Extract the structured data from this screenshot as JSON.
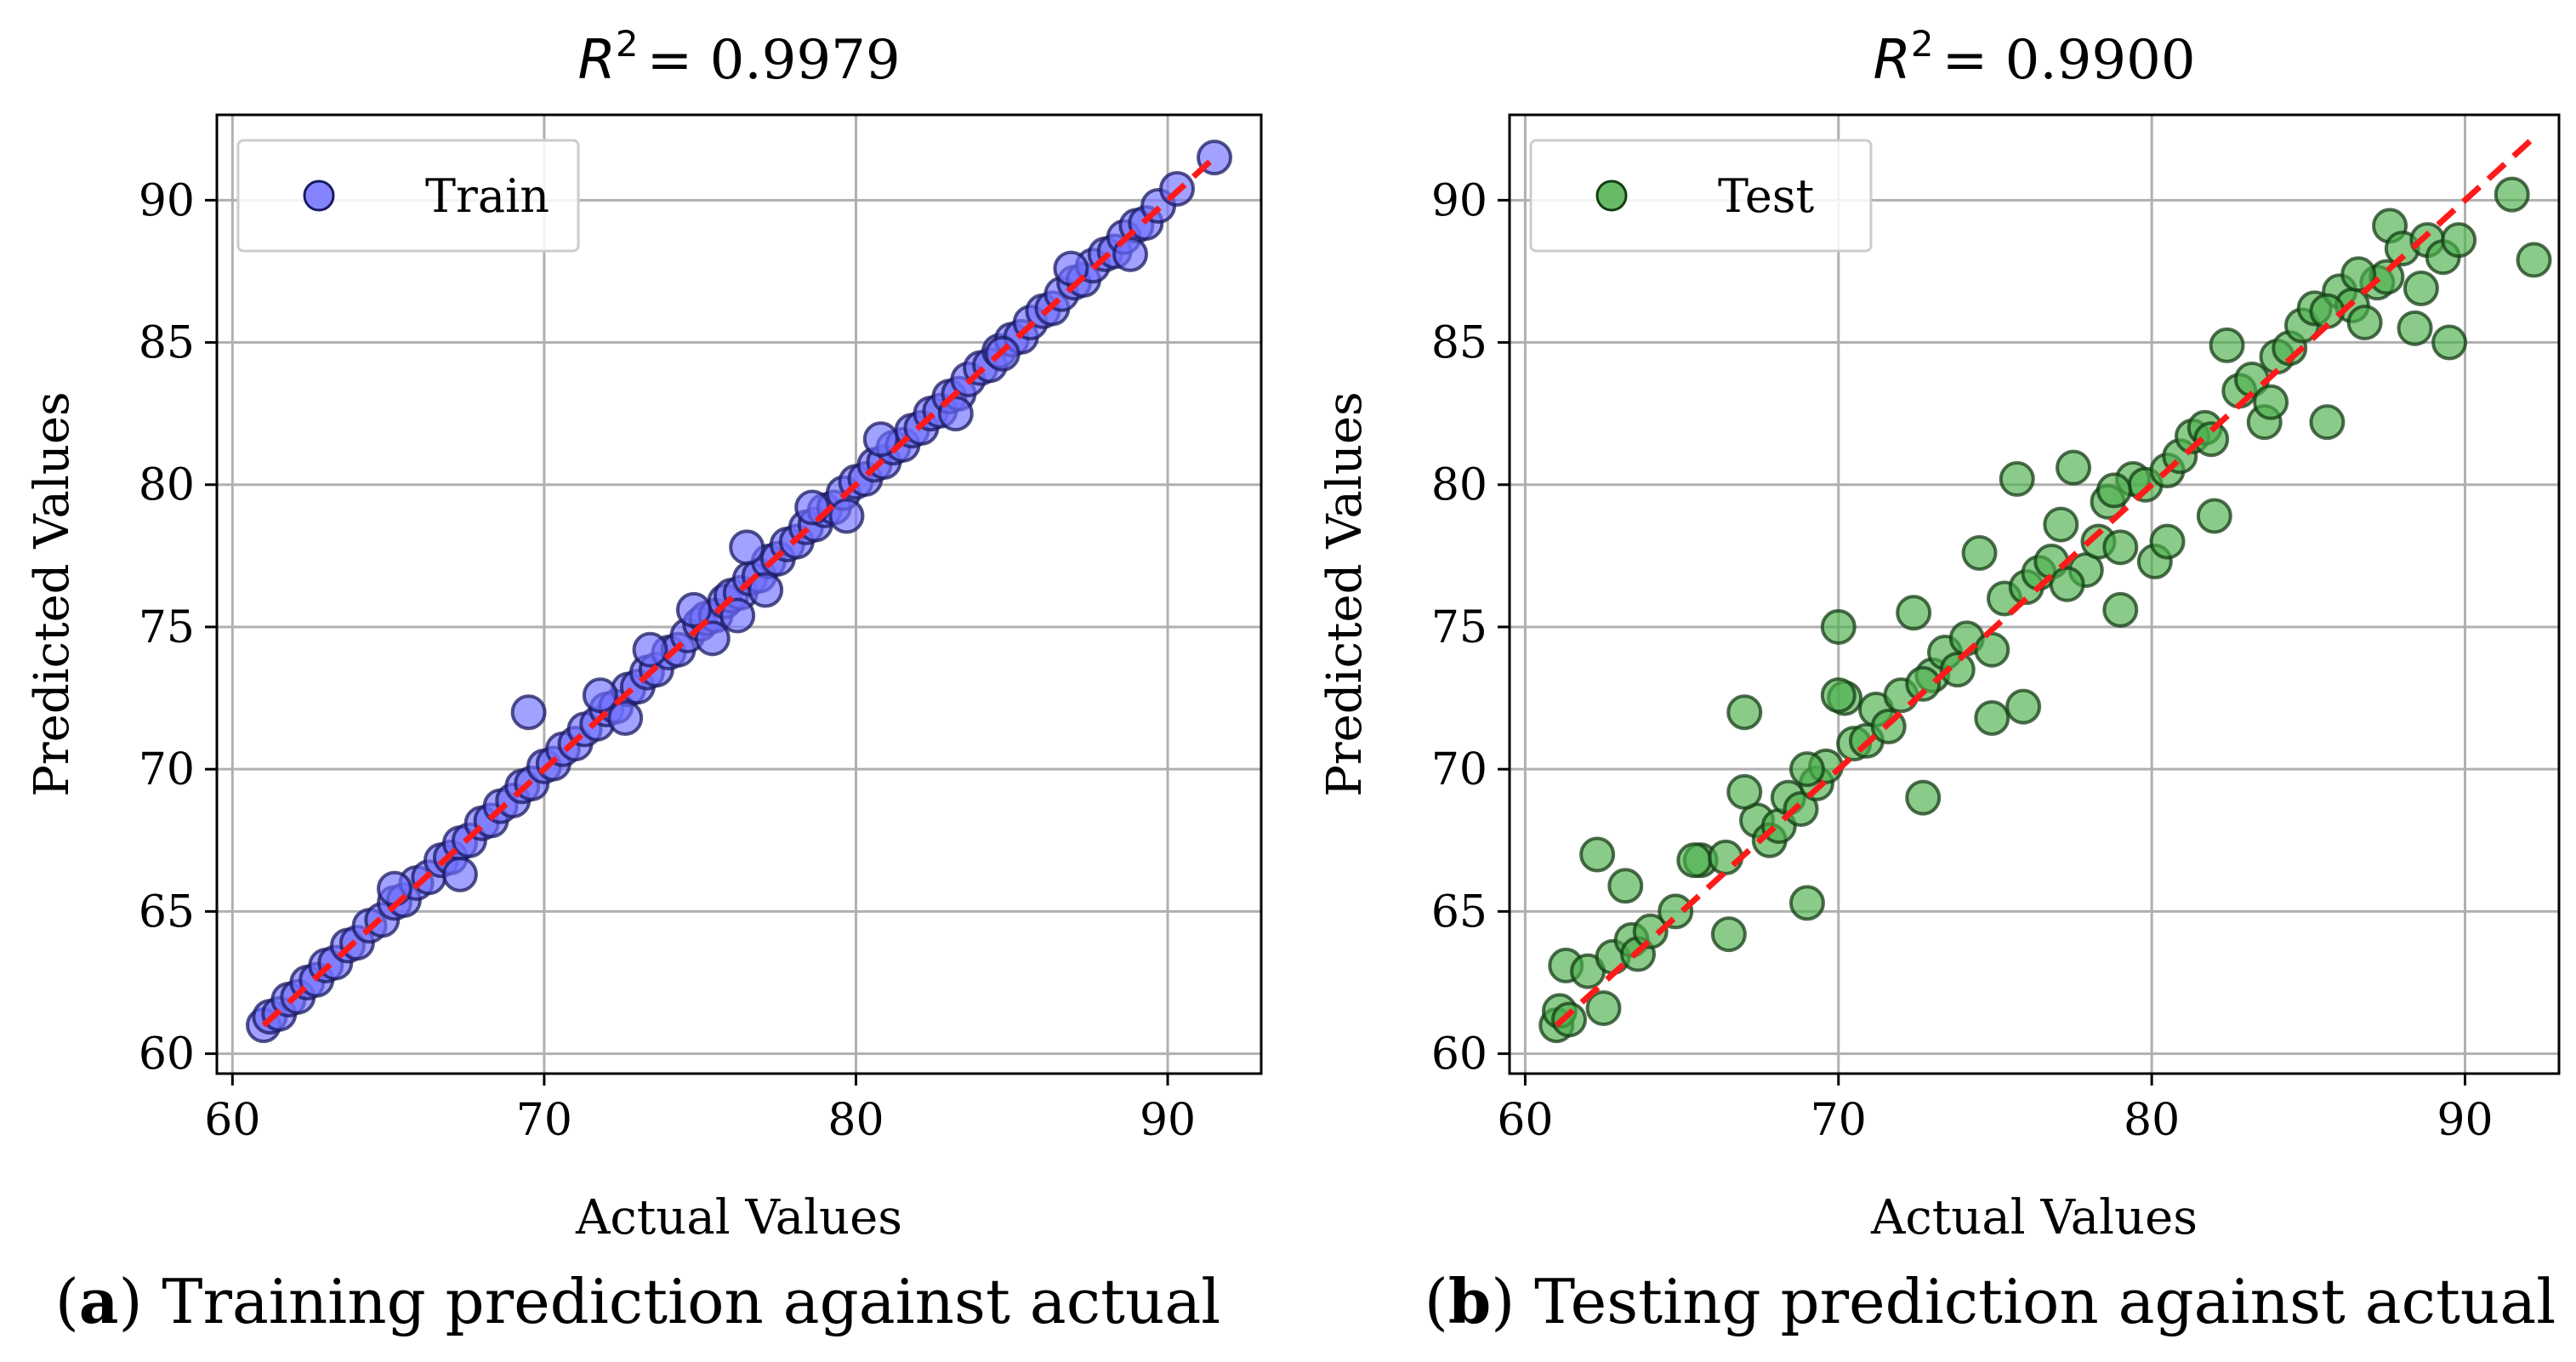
{
  "colors": {
    "train_fill": "#6e6eff",
    "train_edge": "#1a1a60",
    "test_fill": "#4caf4c",
    "test_edge": "#143c14",
    "identity_line": "#ff1a1a",
    "grid": "#b0b0b0",
    "axes": "#000000"
  },
  "chart_data": [
    {
      "type": "scatter",
      "title_prefix": "R",
      "title_sup": "2",
      "title_value": "= 0.9979",
      "xlabel": "Actual Values",
      "ylabel": "Predicted Values",
      "xlim": [
        59.5,
        93
      ],
      "ylim": [
        59.3,
        93
      ],
      "xticks": [
        60,
        70,
        80,
        90
      ],
      "yticks": [
        60,
        65,
        70,
        75,
        80,
        85,
        90
      ],
      "grid": true,
      "legend": "upper-left",
      "series": [
        {
          "name": "Train",
          "x": [
            61.0,
            61.2,
            61.5,
            61.8,
            62.1,
            62.4,
            62.7,
            63.0,
            63.3,
            63.7,
            64.0,
            64.4,
            64.8,
            65.2,
            65.5,
            65.9,
            66.3,
            66.7,
            67.0,
            67.3,
            67.6,
            68.0,
            68.3,
            68.6,
            69.0,
            69.3,
            69.6,
            70.0,
            70.3,
            70.6,
            71.0,
            71.3,
            71.7,
            72.0,
            72.3,
            72.7,
            73.0,
            73.3,
            73.6,
            74.0,
            74.3,
            74.6,
            75.0,
            75.2,
            75.5,
            75.8,
            76.0,
            76.3,
            76.6,
            76.9,
            77.2,
            77.5,
            77.8,
            78.1,
            78.4,
            78.7,
            79.0,
            79.3,
            79.6,
            80.0,
            80.3,
            80.6,
            80.9,
            81.2,
            81.5,
            81.8,
            82.1,
            82.4,
            82.7,
            83.0,
            83.3,
            83.6,
            84.0,
            84.3,
            84.6,
            85.0,
            85.3,
            85.6,
            86.0,
            86.3,
            86.6,
            87.0,
            87.3,
            87.6,
            88.0,
            88.3,
            88.6,
            89.0,
            89.3,
            89.7,
            90.3,
            91.5,
            69.5,
            67.3,
            65.2,
            71.8,
            76.5,
            77.1,
            78.6,
            73.4,
            75.4,
            79.7,
            80.8,
            83.2,
            84.7,
            86.9,
            88.8,
            72.6,
            74.8,
            76.2
          ],
          "y": [
            61.0,
            61.3,
            61.4,
            61.9,
            62.0,
            62.5,
            62.6,
            63.1,
            63.2,
            63.8,
            63.9,
            64.5,
            64.7,
            65.3,
            65.4,
            66.0,
            66.2,
            66.8,
            66.9,
            67.4,
            67.5,
            68.1,
            68.2,
            68.7,
            68.9,
            69.4,
            69.5,
            70.1,
            70.2,
            70.7,
            70.9,
            71.4,
            71.6,
            72.1,
            72.2,
            72.8,
            72.9,
            73.4,
            73.5,
            74.1,
            74.2,
            74.7,
            75.1,
            75.3,
            75.4,
            75.9,
            76.1,
            76.2,
            76.7,
            76.8,
            77.3,
            77.4,
            77.9,
            78.0,
            78.5,
            78.6,
            79.1,
            79.2,
            79.7,
            80.1,
            80.2,
            80.7,
            80.8,
            81.3,
            81.4,
            81.9,
            82.0,
            82.5,
            82.6,
            83.1,
            83.2,
            83.7,
            84.1,
            84.2,
            84.7,
            85.1,
            85.2,
            85.7,
            86.1,
            86.2,
            86.7,
            87.1,
            87.2,
            87.7,
            88.1,
            88.2,
            88.7,
            89.1,
            89.2,
            89.8,
            90.4,
            91.5,
            72.0,
            66.3,
            65.8,
            72.6,
            77.8,
            76.3,
            79.2,
            74.2,
            74.6,
            78.9,
            81.6,
            82.5,
            84.6,
            87.6,
            88.1,
            71.8,
            75.6,
            75.4
          ]
        }
      ]
    },
    {
      "type": "scatter",
      "title_prefix": "R",
      "title_sup": "2",
      "title_value": "= 0.9900",
      "xlabel": "Actual Values",
      "ylabel": "Predicted Values",
      "xlim": [
        59.5,
        93
      ],
      "ylim": [
        59.3,
        93
      ],
      "xticks": [
        60,
        70,
        80,
        90
      ],
      "yticks": [
        60,
        65,
        70,
        75,
        80,
        85,
        90
      ],
      "grid": true,
      "legend": "upper-left",
      "series": [
        {
          "name": "Test",
          "x": [
            61.0,
            61.1,
            61.3,
            61.4,
            62.0,
            62.3,
            62.5,
            62.8,
            63.2,
            63.4,
            63.6,
            64.0,
            64.8,
            65.6,
            66.5,
            67.0,
            67.4,
            67.8,
            68.1,
            68.4,
            68.8,
            69.0,
            69.3,
            69.6,
            70.0,
            70.2,
            70.5,
            70.9,
            71.2,
            71.6,
            72.0,
            72.4,
            72.7,
            73.0,
            73.4,
            73.8,
            74.1,
            74.5,
            74.9,
            75.3,
            75.7,
            76.0,
            76.4,
            76.8,
            77.1,
            77.5,
            77.9,
            78.3,
            78.6,
            79.0,
            79.4,
            79.8,
            80.1,
            80.5,
            80.9,
            81.3,
            81.7,
            82.0,
            82.4,
            82.8,
            83.2,
            83.6,
            84.0,
            84.4,
            84.8,
            85.2,
            85.6,
            86.0,
            86.4,
            86.8,
            87.2,
            87.6,
            88.0,
            88.4,
            88.8,
            89.3,
            89.5,
            89.8,
            91.5,
            92.2,
            67.0,
            69.0,
            70.0,
            72.7,
            75.9,
            79.0,
            80.5,
            83.8,
            85.6,
            87.5,
            88.6,
            65.4,
            66.4,
            74.9,
            77.3,
            78.8,
            81.9,
            86.6
          ],
          "y": [
            61.0,
            61.5,
            63.1,
            61.2,
            62.9,
            67.0,
            61.6,
            63.4,
            65.9,
            64.0,
            63.5,
            64.3,
            65.0,
            66.8,
            64.2,
            72.0,
            68.2,
            67.5,
            68.0,
            69.0,
            68.6,
            65.3,
            69.5,
            70.1,
            75.0,
            72.5,
            70.9,
            71.0,
            72.1,
            71.5,
            72.6,
            75.5,
            69.0,
            73.3,
            74.1,
            73.5,
            74.6,
            77.6,
            71.8,
            76.0,
            80.2,
            76.4,
            76.9,
            77.3,
            78.6,
            80.6,
            77.0,
            78.0,
            79.4,
            75.6,
            80.2,
            80.0,
            77.3,
            80.5,
            81.0,
            81.7,
            82.0,
            78.9,
            84.9,
            83.3,
            83.7,
            82.2,
            84.5,
            84.8,
            85.6,
            86.2,
            82.2,
            86.8,
            86.3,
            85.7,
            87.1,
            89.1,
            88.3,
            85.5,
            88.6,
            88.0,
            85.0,
            88.6,
            90.2,
            87.9,
            69.2,
            70.0,
            72.6,
            73.0,
            72.2,
            77.8,
            78.0,
            82.9,
            86.1,
            87.3,
            86.9,
            66.8,
            66.9,
            74.2,
            76.5,
            79.8,
            81.6,
            87.4
          ]
        }
      ]
    }
  ],
  "captions": [
    {
      "label": "a",
      "text": " Training prediction against actual"
    },
    {
      "label": "b",
      "text": " Testing prediction against actual"
    }
  ]
}
